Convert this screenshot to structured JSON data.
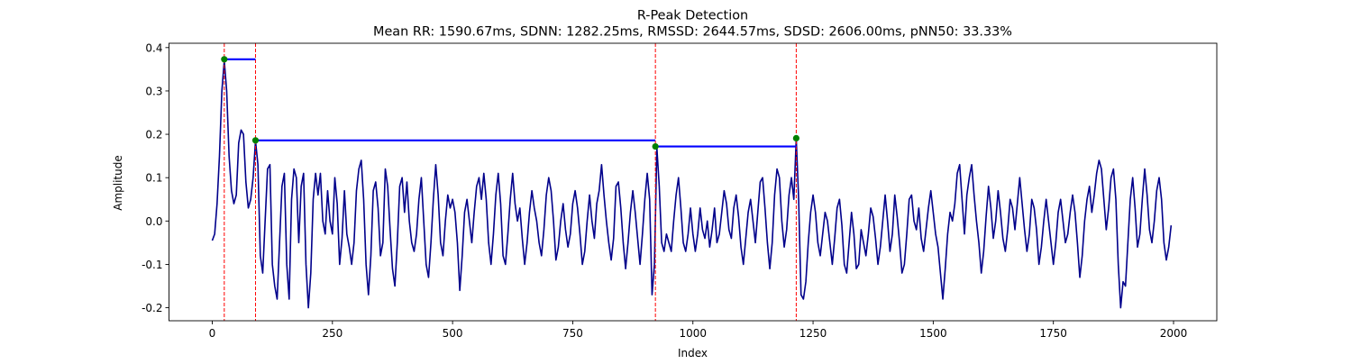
{
  "chart_data": {
    "type": "line",
    "title": "R-Peak Detection",
    "subtitle": "Mean RR: 1590.67ms, SDNN: 1282.25ms, RMSSD: 2644.57ms, SDSD: 2606.00ms, pNN50: 33.33%",
    "xlabel": "Index",
    "ylabel": "Amplitude",
    "xlim": [
      -90,
      2090
    ],
    "ylim": [
      -0.23,
      0.41
    ],
    "x_ticks": [
      0,
      250,
      500,
      750,
      1000,
      1250,
      1500,
      1750,
      2000
    ],
    "y_ticks": [
      -0.2,
      -0.1,
      0.0,
      0.1,
      0.2,
      0.3,
      0.4
    ],
    "grid": false,
    "colors": {
      "signal": "#00008b",
      "peak_marker": "#008000",
      "peak_line": "#ff0000",
      "rr_interval": "#0000ff"
    },
    "signal_points": [
      [
        0,
        -0.045
      ],
      [
        5,
        -0.03
      ],
      [
        10,
        0.04
      ],
      [
        15,
        0.15
      ],
      [
        20,
        0.3
      ],
      [
        25,
        0.37
      ],
      [
        30,
        0.3
      ],
      [
        35,
        0.15
      ],
      [
        40,
        0.07
      ],
      [
        45,
        0.04
      ],
      [
        50,
        0.06
      ],
      [
        55,
        0.18
      ],
      [
        60,
        0.21
      ],
      [
        65,
        0.2
      ],
      [
        70,
        0.09
      ],
      [
        75,
        0.03
      ],
      [
        80,
        0.05
      ],
      [
        85,
        0.1
      ],
      [
        90,
        0.185
      ],
      [
        95,
        0.13
      ],
      [
        100,
        -0.08
      ],
      [
        105,
        -0.12
      ],
      [
        110,
        0.0
      ],
      [
        115,
        0.12
      ],
      [
        120,
        0.13
      ],
      [
        125,
        -0.1
      ],
      [
        130,
        -0.15
      ],
      [
        135,
        -0.18
      ],
      [
        140,
        -0.05
      ],
      [
        145,
        0.08
      ],
      [
        150,
        0.11
      ],
      [
        155,
        -0.1
      ],
      [
        160,
        -0.18
      ],
      [
        165,
        0.05
      ],
      [
        170,
        0.12
      ],
      [
        175,
        0.1
      ],
      [
        180,
        -0.05
      ],
      [
        185,
        0.08
      ],
      [
        190,
        0.11
      ],
      [
        195,
        -0.1
      ],
      [
        200,
        -0.2
      ],
      [
        205,
        -0.12
      ],
      [
        210,
        0.05
      ],
      [
        215,
        0.11
      ],
      [
        220,
        0.06
      ],
      [
        225,
        0.11
      ],
      [
        230,
        0.0
      ],
      [
        235,
        -0.03
      ],
      [
        240,
        0.07
      ],
      [
        245,
        0.0
      ],
      [
        250,
        -0.03
      ],
      [
        255,
        0.1
      ],
      [
        260,
        0.04
      ],
      [
        265,
        -0.1
      ],
      [
        270,
        -0.04
      ],
      [
        275,
        0.07
      ],
      [
        280,
        -0.03
      ],
      [
        285,
        -0.06
      ],
      [
        290,
        -0.1
      ],
      [
        295,
        -0.05
      ],
      [
        300,
        0.07
      ],
      [
        305,
        0.12
      ],
      [
        310,
        0.14
      ],
      [
        315,
        0.05
      ],
      [
        320,
        -0.1
      ],
      [
        325,
        -0.17
      ],
      [
        330,
        -0.08
      ],
      [
        335,
        0.07
      ],
      [
        340,
        0.09
      ],
      [
        345,
        0.03
      ],
      [
        350,
        -0.08
      ],
      [
        355,
        -0.05
      ],
      [
        360,
        0.12
      ],
      [
        365,
        0.08
      ],
      [
        370,
        -0.02
      ],
      [
        375,
        -0.11
      ],
      [
        380,
        -0.15
      ],
      [
        385,
        -0.05
      ],
      [
        390,
        0.08
      ],
      [
        395,
        0.1
      ],
      [
        400,
        0.02
      ],
      [
        405,
        0.09
      ],
      [
        410,
        0.0
      ],
      [
        415,
        -0.05
      ],
      [
        420,
        -0.07
      ],
      [
        425,
        -0.03
      ],
      [
        430,
        0.05
      ],
      [
        435,
        0.1
      ],
      [
        440,
        0.0
      ],
      [
        445,
        -0.1
      ],
      [
        450,
        -0.13
      ],
      [
        455,
        -0.05
      ],
      [
        460,
        0.05
      ],
      [
        465,
        0.13
      ],
      [
        470,
        0.06
      ],
      [
        475,
        -0.05
      ],
      [
        480,
        -0.08
      ],
      [
        485,
        0.0
      ],
      [
        490,
        0.06
      ],
      [
        495,
        0.03
      ],
      [
        500,
        0.05
      ],
      [
        505,
        0.02
      ],
      [
        510,
        -0.05
      ],
      [
        515,
        -0.16
      ],
      [
        520,
        -0.08
      ],
      [
        525,
        0.02
      ],
      [
        530,
        0.05
      ],
      [
        535,
        0.0
      ],
      [
        540,
        -0.05
      ],
      [
        545,
        0.02
      ],
      [
        550,
        0.08
      ],
      [
        555,
        0.1
      ],
      [
        560,
        0.05
      ],
      [
        565,
        0.11
      ],
      [
        570,
        0.05
      ],
      [
        575,
        -0.05
      ],
      [
        580,
        -0.1
      ],
      [
        585,
        -0.03
      ],
      [
        590,
        0.06
      ],
      [
        595,
        0.11
      ],
      [
        600,
        0.04
      ],
      [
        605,
        -0.08
      ],
      [
        610,
        -0.1
      ],
      [
        615,
        -0.03
      ],
      [
        620,
        0.05
      ],
      [
        625,
        0.11
      ],
      [
        630,
        0.04
      ],
      [
        635,
        0.0
      ],
      [
        640,
        0.03
      ],
      [
        645,
        -0.04
      ],
      [
        650,
        -0.1
      ],
      [
        655,
        -0.05
      ],
      [
        660,
        0.02
      ],
      [
        665,
        0.07
      ],
      [
        670,
        0.03
      ],
      [
        675,
        0.0
      ],
      [
        680,
        -0.05
      ],
      [
        685,
        -0.08
      ],
      [
        690,
        -0.02
      ],
      [
        695,
        0.06
      ],
      [
        700,
        0.1
      ],
      [
        705,
        0.07
      ],
      [
        710,
        0.0
      ],
      [
        715,
        -0.09
      ],
      [
        720,
        -0.06
      ],
      [
        725,
        0.0
      ],
      [
        730,
        0.04
      ],
      [
        735,
        -0.02
      ],
      [
        740,
        -0.06
      ],
      [
        745,
        -0.03
      ],
      [
        750,
        0.04
      ],
      [
        755,
        0.07
      ],
      [
        760,
        0.03
      ],
      [
        765,
        -0.03
      ],
      [
        770,
        -0.1
      ],
      [
        775,
        -0.07
      ],
      [
        780,
        0.0
      ],
      [
        785,
        0.06
      ],
      [
        790,
        0.0
      ],
      [
        795,
        -0.04
      ],
      [
        800,
        0.04
      ],
      [
        805,
        0.07
      ],
      [
        810,
        0.13
      ],
      [
        815,
        0.06
      ],
      [
        820,
        0.0
      ],
      [
        825,
        -0.05
      ],
      [
        830,
        -0.09
      ],
      [
        835,
        -0.04
      ],
      [
        840,
        0.08
      ],
      [
        845,
        0.09
      ],
      [
        850,
        0.03
      ],
      [
        855,
        -0.05
      ],
      [
        860,
        -0.11
      ],
      [
        865,
        -0.05
      ],
      [
        870,
        0.02
      ],
      [
        875,
        0.07
      ],
      [
        880,
        0.02
      ],
      [
        885,
        -0.04
      ],
      [
        890,
        -0.1
      ],
      [
        895,
        -0.03
      ],
      [
        900,
        0.05
      ],
      [
        905,
        0.11
      ],
      [
        910,
        0.05
      ],
      [
        915,
        -0.17
      ],
      [
        920,
        -0.1
      ],
      [
        925,
        0.17
      ],
      [
        930,
        0.08
      ],
      [
        935,
        -0.05
      ],
      [
        940,
        -0.07
      ],
      [
        945,
        -0.03
      ],
      [
        950,
        -0.05
      ],
      [
        955,
        -0.07
      ],
      [
        960,
        0.0
      ],
      [
        965,
        0.06
      ],
      [
        970,
        0.1
      ],
      [
        975,
        0.03
      ],
      [
        980,
        -0.05
      ],
      [
        985,
        -0.07
      ],
      [
        990,
        -0.03
      ],
      [
        995,
        0.03
      ],
      [
        1000,
        -0.03
      ],
      [
        1005,
        -0.07
      ],
      [
        1010,
        -0.03
      ],
      [
        1015,
        0.03
      ],
      [
        1020,
        -0.02
      ],
      [
        1025,
        -0.04
      ],
      [
        1030,
        0.0
      ],
      [
        1035,
        -0.06
      ],
      [
        1040,
        -0.02
      ],
      [
        1045,
        0.03
      ],
      [
        1050,
        -0.05
      ],
      [
        1055,
        -0.03
      ],
      [
        1060,
        0.02
      ],
      [
        1065,
        0.07
      ],
      [
        1070,
        0.04
      ],
      [
        1075,
        -0.02
      ],
      [
        1080,
        -0.04
      ],
      [
        1085,
        0.03
      ],
      [
        1090,
        0.06
      ],
      [
        1095,
        0.01
      ],
      [
        1100,
        -0.06
      ],
      [
        1105,
        -0.1
      ],
      [
        1110,
        -0.04
      ],
      [
        1115,
        0.02
      ],
      [
        1120,
        0.05
      ],
      [
        1125,
        0.0
      ],
      [
        1130,
        -0.05
      ],
      [
        1135,
        0.02
      ],
      [
        1140,
        0.09
      ],
      [
        1145,
        0.1
      ],
      [
        1150,
        0.03
      ],
      [
        1155,
        -0.05
      ],
      [
        1160,
        -0.11
      ],
      [
        1165,
        -0.05
      ],
      [
        1170,
        0.06
      ],
      [
        1175,
        0.12
      ],
      [
        1180,
        0.1
      ],
      [
        1185,
        0.0
      ],
      [
        1190,
        -0.06
      ],
      [
        1195,
        -0.02
      ],
      [
        1200,
        0.06
      ],
      [
        1205,
        0.1
      ],
      [
        1210,
        0.05
      ],
      [
        1215,
        0.19
      ],
      [
        1220,
        0.05
      ],
      [
        1225,
        -0.17
      ],
      [
        1230,
        -0.18
      ],
      [
        1235,
        -0.14
      ],
      [
        1240,
        -0.05
      ],
      [
        1245,
        0.02
      ],
      [
        1250,
        0.06
      ],
      [
        1255,
        0.02
      ],
      [
        1260,
        -0.05
      ],
      [
        1265,
        -0.08
      ],
      [
        1270,
        -0.03
      ],
      [
        1275,
        0.02
      ],
      [
        1280,
        0.0
      ],
      [
        1285,
        -0.05
      ],
      [
        1290,
        -0.1
      ],
      [
        1295,
        -0.04
      ],
      [
        1300,
        0.03
      ],
      [
        1305,
        0.05
      ],
      [
        1310,
        -0.01
      ],
      [
        1315,
        -0.1
      ],
      [
        1320,
        -0.12
      ],
      [
        1325,
        -0.05
      ],
      [
        1330,
        0.02
      ],
      [
        1335,
        -0.03
      ],
      [
        1340,
        -0.11
      ],
      [
        1345,
        -0.1
      ],
      [
        1350,
        -0.02
      ],
      [
        1355,
        -0.05
      ],
      [
        1360,
        -0.08
      ],
      [
        1365,
        -0.03
      ],
      [
        1370,
        0.03
      ],
      [
        1375,
        0.01
      ],
      [
        1380,
        -0.04
      ],
      [
        1385,
        -0.1
      ],
      [
        1390,
        -0.06
      ],
      [
        1395,
        0.0
      ],
      [
        1400,
        0.06
      ],
      [
        1405,
        0.0
      ],
      [
        1410,
        -0.07
      ],
      [
        1415,
        -0.03
      ],
      [
        1420,
        0.06
      ],
      [
        1425,
        0.01
      ],
      [
        1430,
        -0.05
      ],
      [
        1435,
        -0.12
      ],
      [
        1440,
        -0.1
      ],
      [
        1445,
        -0.03
      ],
      [
        1450,
        0.05
      ],
      [
        1455,
        0.06
      ],
      [
        1460,
        0.0
      ],
      [
        1465,
        -0.02
      ],
      [
        1470,
        0.03
      ],
      [
        1475,
        -0.04
      ],
      [
        1480,
        -0.07
      ],
      [
        1485,
        -0.02
      ],
      [
        1490,
        0.03
      ],
      [
        1495,
        0.07
      ],
      [
        1500,
        0.02
      ],
      [
        1505,
        -0.03
      ],
      [
        1510,
        -0.06
      ],
      [
        1515,
        -0.12
      ],
      [
        1520,
        -0.18
      ],
      [
        1525,
        -0.11
      ],
      [
        1530,
        -0.03
      ],
      [
        1535,
        0.02
      ],
      [
        1540,
        0.0
      ],
      [
        1545,
        0.04
      ],
      [
        1550,
        0.11
      ],
      [
        1555,
        0.13
      ],
      [
        1560,
        0.05
      ],
      [
        1565,
        -0.03
      ],
      [
        1570,
        0.06
      ],
      [
        1575,
        0.1
      ],
      [
        1580,
        0.13
      ],
      [
        1585,
        0.06
      ],
      [
        1590,
        0.0
      ],
      [
        1595,
        -0.05
      ],
      [
        1600,
        -0.12
      ],
      [
        1605,
        -0.07
      ],
      [
        1610,
        0.01
      ],
      [
        1615,
        0.08
      ],
      [
        1620,
        0.03
      ],
      [
        1625,
        -0.04
      ],
      [
        1630,
        0.0
      ],
      [
        1635,
        0.07
      ],
      [
        1640,
        0.02
      ],
      [
        1645,
        -0.04
      ],
      [
        1650,
        -0.07
      ],
      [
        1655,
        -0.02
      ],
      [
        1660,
        0.05
      ],
      [
        1665,
        0.03
      ],
      [
        1670,
        -0.02
      ],
      [
        1675,
        0.04
      ],
      [
        1680,
        0.1
      ],
      [
        1685,
        0.04
      ],
      [
        1690,
        -0.02
      ],
      [
        1695,
        -0.07
      ],
      [
        1700,
        -0.03
      ],
      [
        1705,
        0.05
      ],
      [
        1710,
        0.03
      ],
      [
        1715,
        -0.02
      ],
      [
        1720,
        -0.1
      ],
      [
        1725,
        -0.06
      ],
      [
        1730,
        0.0
      ],
      [
        1735,
        0.05
      ],
      [
        1740,
        0.0
      ],
      [
        1745,
        -0.05
      ],
      [
        1750,
        -0.1
      ],
      [
        1755,
        -0.05
      ],
      [
        1760,
        0.02
      ],
      [
        1765,
        0.05
      ],
      [
        1770,
        0.0
      ],
      [
        1775,
        -0.05
      ],
      [
        1780,
        -0.03
      ],
      [
        1785,
        0.02
      ],
      [
        1790,
        0.06
      ],
      [
        1795,
        0.02
      ],
      [
        1800,
        -0.05
      ],
      [
        1805,
        -0.13
      ],
      [
        1810,
        -0.08
      ],
      [
        1815,
        0.0
      ],
      [
        1820,
        0.05
      ],
      [
        1825,
        0.08
      ],
      [
        1830,
        0.02
      ],
      [
        1835,
        0.06
      ],
      [
        1840,
        0.11
      ],
      [
        1845,
        0.14
      ],
      [
        1850,
        0.12
      ],
      [
        1855,
        0.05
      ],
      [
        1860,
        -0.02
      ],
      [
        1865,
        0.03
      ],
      [
        1870,
        0.1
      ],
      [
        1875,
        0.12
      ],
      [
        1880,
        0.05
      ],
      [
        1885,
        -0.1
      ],
      [
        1890,
        -0.2
      ],
      [
        1895,
        -0.14
      ],
      [
        1900,
        -0.15
      ],
      [
        1905,
        -0.05
      ],
      [
        1910,
        0.05
      ],
      [
        1915,
        0.1
      ],
      [
        1920,
        0.03
      ],
      [
        1925,
        -0.06
      ],
      [
        1930,
        -0.03
      ],
      [
        1935,
        0.05
      ],
      [
        1940,
        0.12
      ],
      [
        1945,
        0.06
      ],
      [
        1950,
        -0.02
      ],
      [
        1955,
        -0.05
      ],
      [
        1960,
        0.0
      ],
      [
        1965,
        0.07
      ],
      [
        1970,
        0.1
      ],
      [
        1975,
        0.05
      ],
      [
        1980,
        -0.05
      ],
      [
        1985,
        -0.09
      ],
      [
        1990,
        -0.06
      ],
      [
        1995,
        -0.01
      ]
    ],
    "r_peaks": [
      {
        "x": 25,
        "y": 0.373
      },
      {
        "x": 90,
        "y": 0.186
      },
      {
        "x": 922,
        "y": 0.172
      },
      {
        "x": 1215,
        "y": 0.191
      }
    ],
    "rr_intervals": [
      {
        "x_start": 25,
        "x_end": 90,
        "y": 0.373
      },
      {
        "x_start": 90,
        "x_end": 922,
        "y": 0.186
      },
      {
        "x_start": 922,
        "x_end": 1215,
        "y": 0.172
      }
    ]
  }
}
